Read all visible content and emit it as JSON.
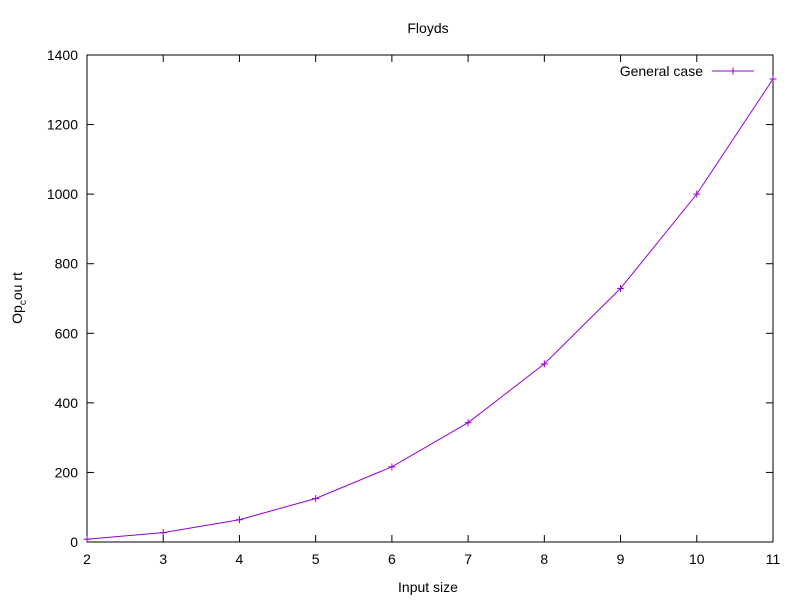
{
  "chart_data": {
    "type": "line",
    "title": "Floyds",
    "xlabel": "Input size",
    "ylabel": "Op",
    "ylabel_sub": "c",
    "ylabel_rest": "ou rt",
    "xlim": [
      2,
      11
    ],
    "ylim": [
      0,
      1400
    ],
    "x_ticks": [
      2,
      3,
      4,
      5,
      6,
      7,
      8,
      9,
      10,
      11
    ],
    "y_ticks": [
      0,
      200,
      400,
      600,
      800,
      1000,
      1200,
      1400
    ],
    "grid": false,
    "legend_position": "top-right",
    "series": [
      {
        "name": "General case",
        "color": "#9400d3",
        "marker": "plus",
        "x": [
          2,
          3,
          4,
          5,
          6,
          7,
          8,
          9,
          10,
          11
        ],
        "y": [
          8,
          27,
          64,
          125,
          216,
          343,
          512,
          729,
          1000,
          1331
        ]
      }
    ]
  }
}
